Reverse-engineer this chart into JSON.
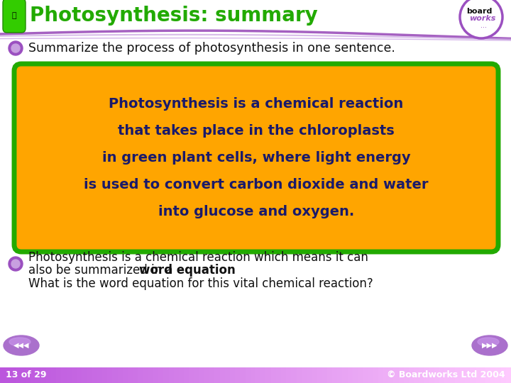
{
  "title": "Photosynthesis: summary",
  "title_color": "#22AA00",
  "background_color": "#FFFFFF",
  "header_bg": "#FFFFFF",
  "bullet1": "Summarize the process of photosynthesis in one sentence.",
  "box_bg": "#FFA500",
  "box_border": "#22AA00",
  "box_text_lines": [
    "Photosynthesis is a chemical reaction",
    "that takes place in the chloroplasts",
    "in green plant cells, where light energy",
    "is used to convert carbon dioxide and water",
    "into glucose and oxygen."
  ],
  "box_text_color": "#1a1a6a",
  "bullet2_line1": "Photosynthesis is a chemical reaction which means it can",
  "bullet2_line2a": "also be summarized in a ",
  "bullet2_line2b": "word equation",
  "bullet2_line2c": ".",
  "line3": "What is the word equation for this vital chemical reaction?",
  "footer_text": "© Boardworks Ltd 2004",
  "footer_slide": "13 of 29",
  "bullet_color_outer": "#9B50C0",
  "bullet_color_inner": "#C8A0E0",
  "body_text_color": "#111111",
  "footer_bar_color": "#BB88DD",
  "header_swirl1": "#9B60BB",
  "header_swirl2": "#C8A0E0",
  "logo_border_color": "#9B50C0",
  "nav_btn_color": "#AA70CC"
}
